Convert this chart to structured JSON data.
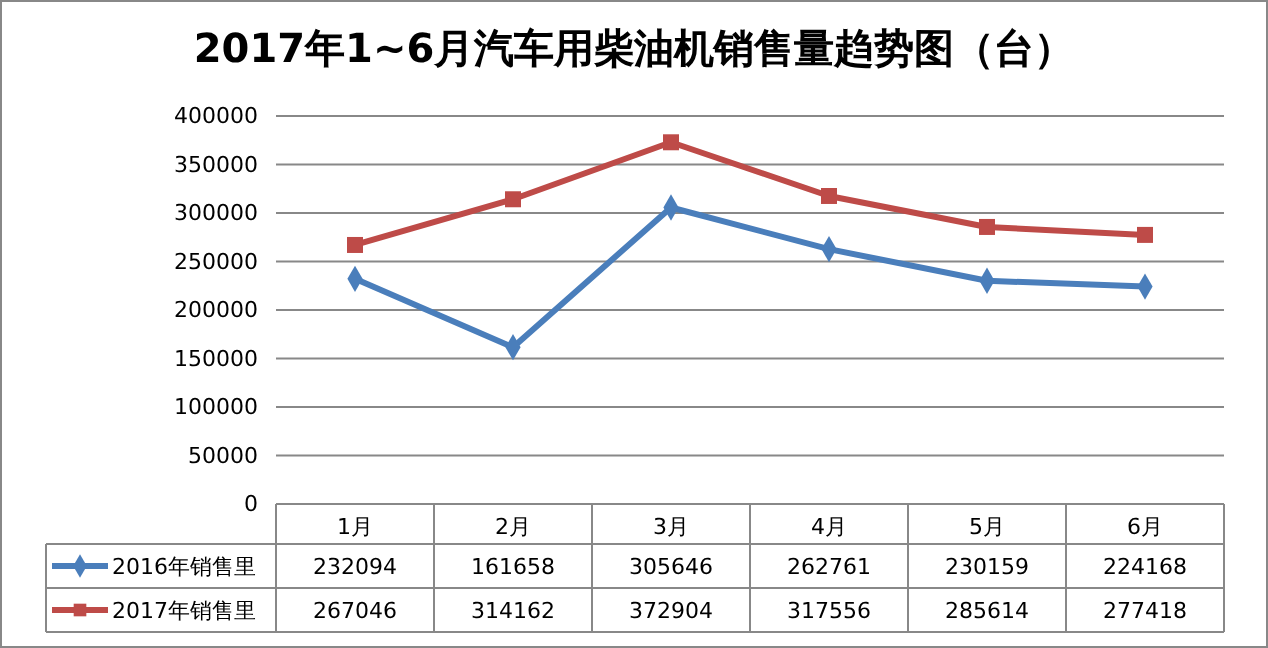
{
  "chart_data": {
    "type": "line",
    "title": "2017年1~6月汽车用柴油机销售量趋势图（台）",
    "categories": [
      "1月",
      "2月",
      "3月",
      "4月",
      "5月",
      "6月"
    ],
    "series": [
      {
        "name": "2016年销售里",
        "color": "#4a7ebb",
        "marker": "diamond",
        "values": [
          232094,
          161658,
          305646,
          262761,
          230159,
          224168
        ]
      },
      {
        "name": "2017年销售里",
        "color": "#be4b48",
        "marker": "square",
        "values": [
          267046,
          314162,
          372904,
          317556,
          285614,
          277418
        ]
      }
    ],
    "ylim": [
      0,
      400000
    ],
    "yticks": [
      0,
      50000,
      100000,
      150000,
      200000,
      250000,
      300000,
      350000,
      400000
    ],
    "grid": "y",
    "legend": "bottom",
    "data_labels": true
  }
}
